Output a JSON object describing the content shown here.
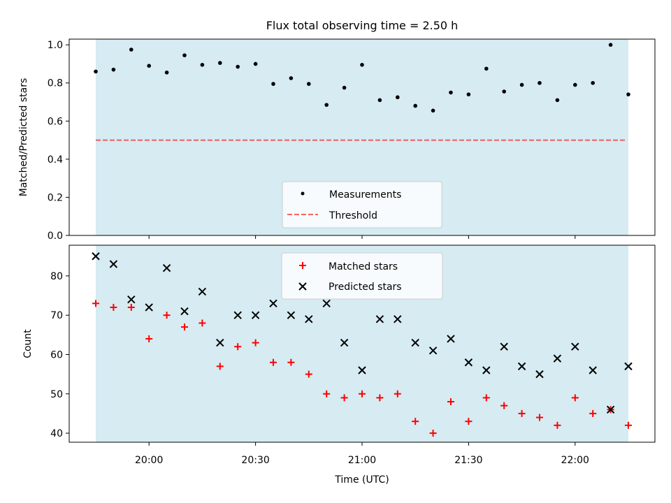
{
  "title": "Flux total observing time = 2.50 h",
  "colors": {
    "band": "#add8e6",
    "measurement": "#000000",
    "threshold": "#ff0000",
    "matched": "#ff0000",
    "predicted": "#000000"
  },
  "chart_data": [
    {
      "type": "scatter",
      "ylabel": "Matched/Predicted stars",
      "ylim": [
        0.0,
        1.03
      ],
      "yticks": [
        "0.0",
        "0.2",
        "0.4",
        "0.6",
        "0.8",
        "1.0"
      ],
      "legend": {
        "position": "bottom-center",
        "entries": [
          "Measurements",
          "Threshold"
        ]
      },
      "threshold": 0.5,
      "series": [
        {
          "name": "Measurements",
          "marker": "dot",
          "x": [
            "19:45",
            "19:50",
            "19:55",
            "20:00",
            "20:05",
            "20:10",
            "20:15",
            "20:20",
            "20:25",
            "20:30",
            "20:35",
            "20:40",
            "20:45",
            "20:50",
            "20:55",
            "21:00",
            "21:05",
            "21:10",
            "21:15",
            "21:20",
            "21:25",
            "21:30",
            "21:35",
            "21:40",
            "21:45",
            "21:50",
            "21:55",
            "22:00",
            "22:05",
            "22:10",
            "22:15"
          ],
          "values": [
            0.86,
            0.87,
            0.975,
            0.89,
            0.855,
            0.945,
            0.895,
            0.905,
            0.885,
            0.9,
            0.795,
            0.825,
            0.795,
            0.685,
            0.775,
            0.895,
            0.71,
            0.725,
            0.68,
            0.655,
            0.75,
            0.74,
            0.875,
            0.755,
            0.79,
            0.8,
            0.71,
            0.79,
            0.8,
            1.0,
            0.74
          ]
        }
      ]
    },
    {
      "type": "scatter",
      "ylabel": "Count",
      "xlabel": "Time (UTC)",
      "ylim": [
        37.7,
        87.8
      ],
      "yticks": [
        "40",
        "50",
        "60",
        "70",
        "80"
      ],
      "xticks": [
        "20:00",
        "20:30",
        "21:00",
        "21:30",
        "22:00"
      ],
      "legend": {
        "position": "top-center",
        "entries": [
          "Matched stars",
          "Predicted stars"
        ]
      },
      "series": [
        {
          "name": "Matched stars",
          "marker": "plus",
          "x": [
            "19:45",
            "19:50",
            "19:55",
            "20:00",
            "20:05",
            "20:10",
            "20:15",
            "20:20",
            "20:25",
            "20:30",
            "20:35",
            "20:40",
            "20:45",
            "20:50",
            "20:55",
            "21:00",
            "21:05",
            "21:10",
            "21:15",
            "21:20",
            "21:25",
            "21:30",
            "21:35",
            "21:40",
            "21:45",
            "21:50",
            "21:55",
            "22:00",
            "22:05",
            "22:10",
            "22:15"
          ],
          "values": [
            73,
            72,
            72,
            64,
            70,
            67,
            68,
            57,
            62,
            63,
            58,
            58,
            55,
            50,
            49,
            50,
            49,
            50,
            43,
            40,
            48,
            43,
            49,
            47,
            45,
            44,
            42,
            49,
            45,
            46,
            42
          ]
        },
        {
          "name": "Predicted stars",
          "marker": "x",
          "x": [
            "19:45",
            "19:50",
            "19:55",
            "20:00",
            "20:05",
            "20:10",
            "20:15",
            "20:20",
            "20:25",
            "20:30",
            "20:35",
            "20:40",
            "20:45",
            "20:50",
            "20:55",
            "21:00",
            "21:05",
            "21:10",
            "21:15",
            "21:20",
            "21:25",
            "21:30",
            "21:35",
            "21:40",
            "21:45",
            "21:50",
            "21:55",
            "22:00",
            "22:05",
            "22:10",
            "22:15"
          ],
          "values": [
            85,
            83,
            74,
            72,
            82,
            71,
            76,
            63,
            70,
            70,
            73,
            70,
            69,
            73,
            63,
            56,
            69,
            69,
            63,
            61,
            64,
            58,
            56,
            62,
            57,
            55,
            59,
            62,
            56,
            46,
            57
          ]
        }
      ]
    }
  ]
}
